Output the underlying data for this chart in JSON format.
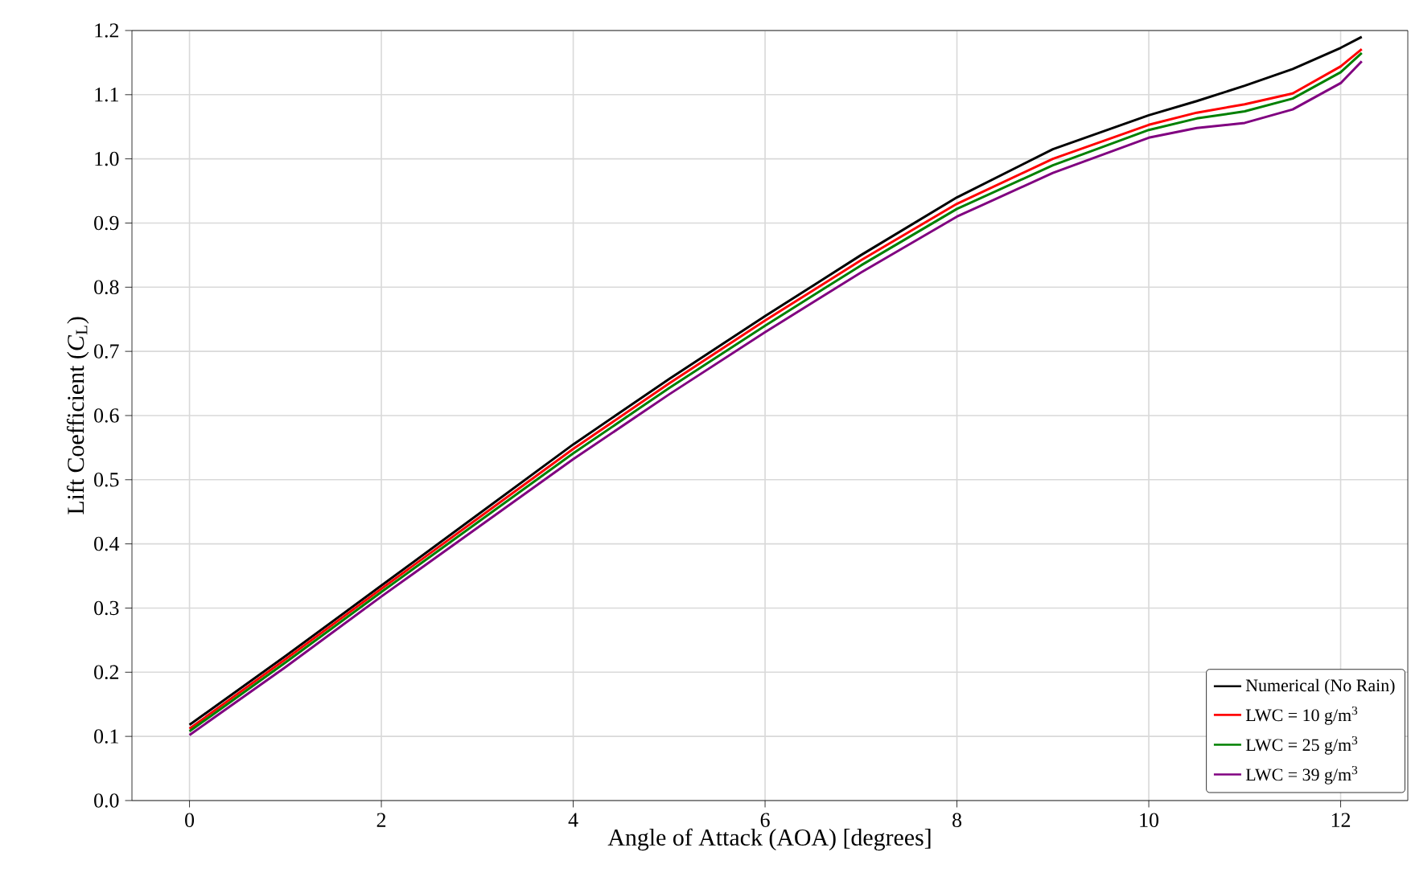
{
  "chart_data": {
    "type": "line",
    "xlabel": "Angle of Attack (AOA) [degrees]",
    "ylabel": "Lift Coefficient (*C*$_{L}$)",
    "x": [
      0,
      1,
      2,
      3,
      4,
      5,
      6,
      7,
      8,
      9,
      10,
      10.5,
      11,
      11.5,
      12,
      12.22
    ],
    "series": [
      {
        "name": "Numerical (No Rain)",
        "color": "#000000",
        "values": [
          0.118,
          0.225,
          0.335,
          0.445,
          0.555,
          0.657,
          0.755,
          0.85,
          0.94,
          1.015,
          1.068,
          1.09,
          1.114,
          1.14,
          1.173,
          1.19
        ]
      },
      {
        "name": "LWC = 10 g/m$^{3}$",
        "color": "#ff0000",
        "values": [
          0.112,
          0.22,
          0.33,
          0.439,
          0.548,
          0.65,
          0.748,
          0.842,
          0.93,
          1.0,
          1.053,
          1.072,
          1.085,
          1.102,
          1.144,
          1.171
        ]
      },
      {
        "name": "LWC = 25 g/m$^{3}$",
        "color": "#008000",
        "values": [
          0.108,
          0.215,
          0.325,
          0.433,
          0.541,
          0.643,
          0.74,
          0.834,
          0.922,
          0.99,
          1.045,
          1.063,
          1.074,
          1.094,
          1.135,
          1.165
        ]
      },
      {
        "name": "LWC = 39 g/m$^{3}$",
        "color": "#800080",
        "values": [
          0.102,
          0.208,
          0.318,
          0.425,
          0.532,
          0.633,
          0.73,
          0.823,
          0.91,
          0.978,
          1.033,
          1.048,
          1.056,
          1.077,
          1.118,
          1.152
        ]
      }
    ],
    "xlim": [
      -0.6,
      12.7
    ],
    "ylim": [
      0,
      1.2
    ],
    "xticks": [
      0,
      2,
      4,
      6,
      8,
      10,
      12
    ],
    "yticks": [
      {
        "value": 0,
        "label": "0.0"
      },
      0.1,
      0.2,
      0.3,
      0.4,
      0.5,
      0.6,
      0.7,
      0.8,
      0.9,
      {
        "value": 1,
        "label": "1.0"
      },
      1.1,
      1.2
    ],
    "grid": true,
    "legend": "bottom right",
    "marker": "none",
    "line_style": "solid"
  }
}
